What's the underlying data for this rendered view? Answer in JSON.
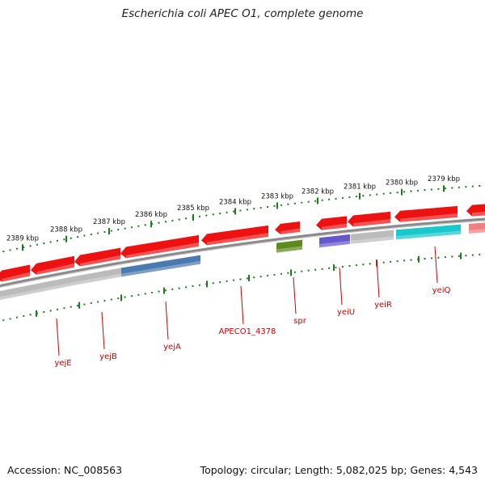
{
  "title": "Escherichia coli APEC O1, complete genome",
  "footer": {
    "accession": "Accession: NC_008563",
    "stats": "Topology: circular; Length: 5,082,025 bp; Genes: 4,543"
  },
  "colors": {
    "backbone": "#8a8a8a",
    "ruler": "#1e7a1e",
    "label": "#cc0000",
    "red": "#ee1111",
    "grey": "#bbbbbb",
    "blue": "#4a7ab0",
    "olive": "#5c8a1e",
    "purple": "#6658cc",
    "cyan": "#18c8cc",
    "pink": "#f08080"
  },
  "ruler_labels": [
    "2389 kbp",
    "2388 kbp",
    "2387 kbp",
    "2386 kbp",
    "2385 kbp",
    "2384 kbp",
    "2383 kbp",
    "2382 kbp",
    "2381 kbp",
    "2380 kbp",
    "2379 kbp"
  ],
  "genes": [
    {
      "label": "yejE",
      "color": "red",
      "strand": "+"
    },
    {
      "label": "yejE",
      "color": "grey",
      "strand": "-"
    },
    {
      "label": "yejB",
      "color": "red",
      "strand": "+"
    },
    {
      "label": "yejB",
      "color": "grey",
      "strand": "-"
    },
    {
      "label": "yejA",
      "color": "red",
      "strand": "+"
    },
    {
      "label": "yejA",
      "color": "blue",
      "strand": "-"
    },
    {
      "label": "APECO1_4378",
      "color": "red",
      "strand": "+"
    },
    {
      "label": "spr",
      "color": "red",
      "strand": "+"
    },
    {
      "label": "spr",
      "color": "olive",
      "strand": "-"
    },
    {
      "label": "yeiU",
      "color": "red",
      "strand": "+"
    },
    {
      "label": "yeiU",
      "color": "purple",
      "strand": "-"
    },
    {
      "label": "yeiR",
      "color": "red",
      "strand": "+"
    },
    {
      "label": "yeiR",
      "color": "grey",
      "strand": "-"
    },
    {
      "label": "yeiQ",
      "color": "red",
      "strand": "+"
    },
    {
      "label": "yeiQ",
      "color": "cyan",
      "strand": "-"
    },
    {
      "label": "",
      "color": "red",
      "strand": "+"
    },
    {
      "label": "",
      "color": "pink",
      "strand": "-"
    }
  ]
}
